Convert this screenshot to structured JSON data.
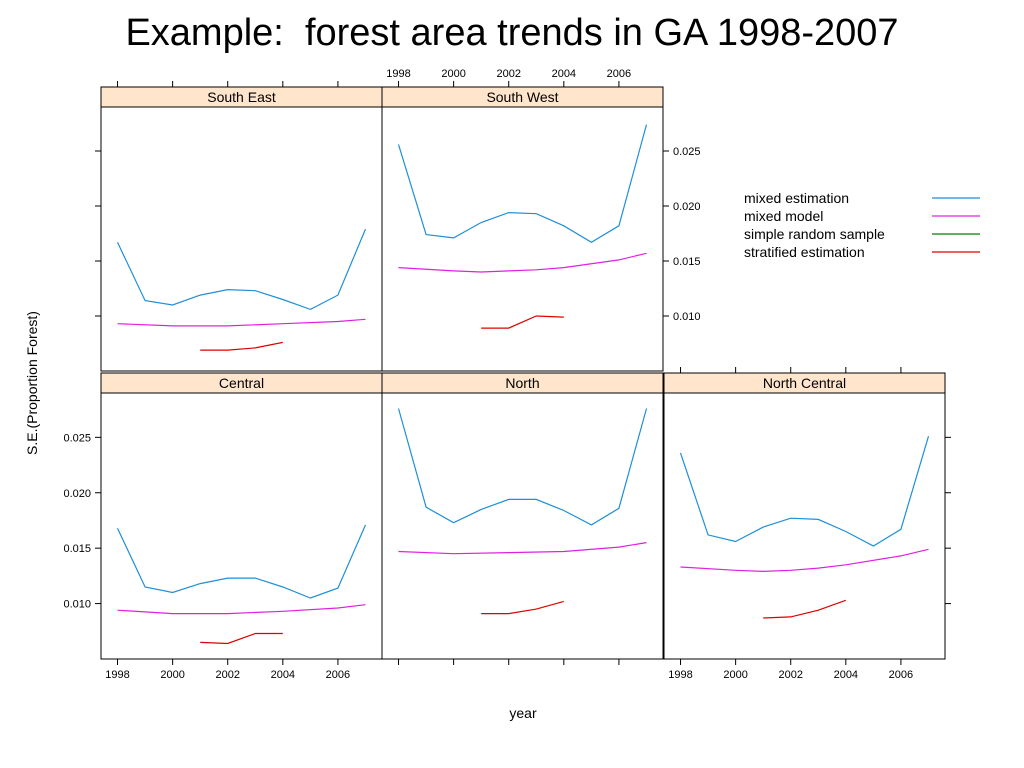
{
  "page": {
    "title": "Example:  forest area trends in GA 1998-2007"
  },
  "colors": {
    "strip_background": "#ffe5cc",
    "mixed_estimation": "#1f8fd8",
    "mixed_model": "#e020e0",
    "simple_random_sample": "#008000",
    "stratified_estimation": "#e00000"
  },
  "chart_data": {
    "type": "line",
    "layout": "trellis 3 columns x 2 rows",
    "xlabel": "year",
    "ylabel": "S.E.(Proportion Forest)",
    "xlim": [
      1997.4,
      2007.6
    ],
    "ylim": [
      0.005,
      0.029
    ],
    "x_ticks": [
      1998,
      2000,
      2002,
      2004,
      2006
    ],
    "y_ticks": [
      0.01,
      0.015,
      0.02,
      0.025
    ],
    "x_tick_labels": [
      "1998",
      "2000",
      "2002",
      "2004",
      "2006"
    ],
    "y_tick_labels": [
      "0.010",
      "0.015",
      "0.020",
      "0.025"
    ],
    "grid": false,
    "legend_position": "right",
    "legend": [
      {
        "name": "mixed estimation",
        "color_key": "mixed_estimation"
      },
      {
        "name": "mixed model",
        "color_key": "mixed_model"
      },
      {
        "name": "simple random sample",
        "color_key": "simple_random_sample"
      },
      {
        "name": "stratified estimation",
        "color_key": "stratified_estimation"
      }
    ],
    "panels": [
      {
        "name": "South East",
        "row": 0,
        "col": 0,
        "series": [
          {
            "name": "mixed estimation",
            "color_key": "mixed_estimation",
            "x": [
              1998,
              1999,
              2000,
              2001,
              2002,
              2003,
              2004,
              2005,
              2006,
              2007
            ],
            "y": [
              0.0167,
              0.0114,
              0.011,
              0.0119,
              0.0124,
              0.0123,
              0.0115,
              0.0106,
              0.0119,
              0.0179
            ]
          },
          {
            "name": "mixed model",
            "color_key": "mixed_model",
            "x": [
              1998,
              2000,
              2002,
              2004,
              2006,
              2007
            ],
            "y": [
              0.0093,
              0.0091,
              0.0091,
              0.0093,
              0.0095,
              0.0097
            ]
          },
          {
            "name": "stratified estimation",
            "color_key": "stratified_estimation",
            "x": [
              2001,
              2002,
              2003,
              2004
            ],
            "y": [
              0.0069,
              0.0069,
              0.0071,
              0.0076
            ]
          }
        ]
      },
      {
        "name": "South West",
        "row": 0,
        "col": 1,
        "series": [
          {
            "name": "mixed estimation",
            "color_key": "mixed_estimation",
            "x": [
              1998,
              1999,
              2000,
              2001,
              2002,
              2003,
              2004,
              2005,
              2006,
              2007
            ],
            "y": [
              0.0256,
              0.0174,
              0.0171,
              0.0185,
              0.0194,
              0.0193,
              0.0182,
              0.0167,
              0.0182,
              0.0274
            ]
          },
          {
            "name": "mixed model",
            "color_key": "mixed_model",
            "x": [
              1998,
              2000,
              2001,
              2002,
              2003,
              2004,
              2006,
              2007
            ],
            "y": [
              0.0144,
              0.0141,
              0.014,
              0.0141,
              0.0142,
              0.0144,
              0.0151,
              0.0157
            ]
          },
          {
            "name": "stratified estimation",
            "color_key": "stratified_estimation",
            "x": [
              2001,
              2002,
              2003,
              2004
            ],
            "y": [
              0.0089,
              0.0089,
              0.01,
              0.0099
            ]
          }
        ]
      },
      {
        "name": "Central",
        "row": 1,
        "col": 0,
        "series": [
          {
            "name": "mixed estimation",
            "color_key": "mixed_estimation",
            "x": [
              1998,
              1999,
              2000,
              2001,
              2002,
              2003,
              2004,
              2005,
              2006,
              2007
            ],
            "y": [
              0.0168,
              0.0115,
              0.011,
              0.0118,
              0.0123,
              0.0123,
              0.0115,
              0.0105,
              0.0114,
              0.0171
            ]
          },
          {
            "name": "mixed model",
            "color_key": "mixed_model",
            "x": [
              1998,
              2000,
              2002,
              2004,
              2006,
              2007
            ],
            "y": [
              0.0094,
              0.0091,
              0.0091,
              0.0093,
              0.0096,
              0.0099
            ]
          },
          {
            "name": "stratified estimation",
            "color_key": "stratified_estimation",
            "x": [
              2001,
              2002,
              2003,
              2004
            ],
            "y": [
              0.0065,
              0.0064,
              0.0073,
              0.0073
            ]
          }
        ]
      },
      {
        "name": "North",
        "row": 1,
        "col": 1,
        "series": [
          {
            "name": "mixed estimation",
            "color_key": "mixed_estimation",
            "x": [
              1998,
              1999,
              2000,
              2001,
              2002,
              2003,
              2004,
              2005,
              2006,
              2007
            ],
            "y": [
              0.0276,
              0.0187,
              0.0173,
              0.0185,
              0.0194,
              0.0194,
              0.0184,
              0.0171,
              0.0186,
              0.0276
            ]
          },
          {
            "name": "mixed model",
            "color_key": "mixed_model",
            "x": [
              1998,
              2000,
              2002,
              2004,
              2006,
              2007
            ],
            "y": [
              0.0147,
              0.0145,
              0.0146,
              0.0147,
              0.0151,
              0.0155
            ]
          },
          {
            "name": "stratified estimation",
            "color_key": "stratified_estimation",
            "x": [
              2001,
              2002,
              2003,
              2004
            ],
            "y": [
              0.0091,
              0.0091,
              0.0095,
              0.0102
            ]
          }
        ]
      },
      {
        "name": "North Central",
        "row": 1,
        "col": 2,
        "series": [
          {
            "name": "mixed estimation",
            "color_key": "mixed_estimation",
            "x": [
              1998,
              1999,
              2000,
              2001,
              2002,
              2003,
              2004,
              2005,
              2006,
              2007
            ],
            "y": [
              0.0236,
              0.0162,
              0.0156,
              0.0169,
              0.0177,
              0.0176,
              0.0165,
              0.0152,
              0.0167,
              0.0251
            ]
          },
          {
            "name": "mixed model",
            "color_key": "mixed_model",
            "x": [
              1998,
              2000,
              2001,
              2002,
              2003,
              2004,
              2006,
              2007
            ],
            "y": [
              0.0133,
              0.013,
              0.0129,
              0.013,
              0.0132,
              0.0135,
              0.0143,
              0.0149
            ]
          },
          {
            "name": "stratified estimation",
            "color_key": "stratified_estimation",
            "x": [
              2001,
              2002,
              2003,
              2004
            ],
            "y": [
              0.0087,
              0.0088,
              0.0094,
              0.0103
            ]
          }
        ]
      }
    ]
  }
}
